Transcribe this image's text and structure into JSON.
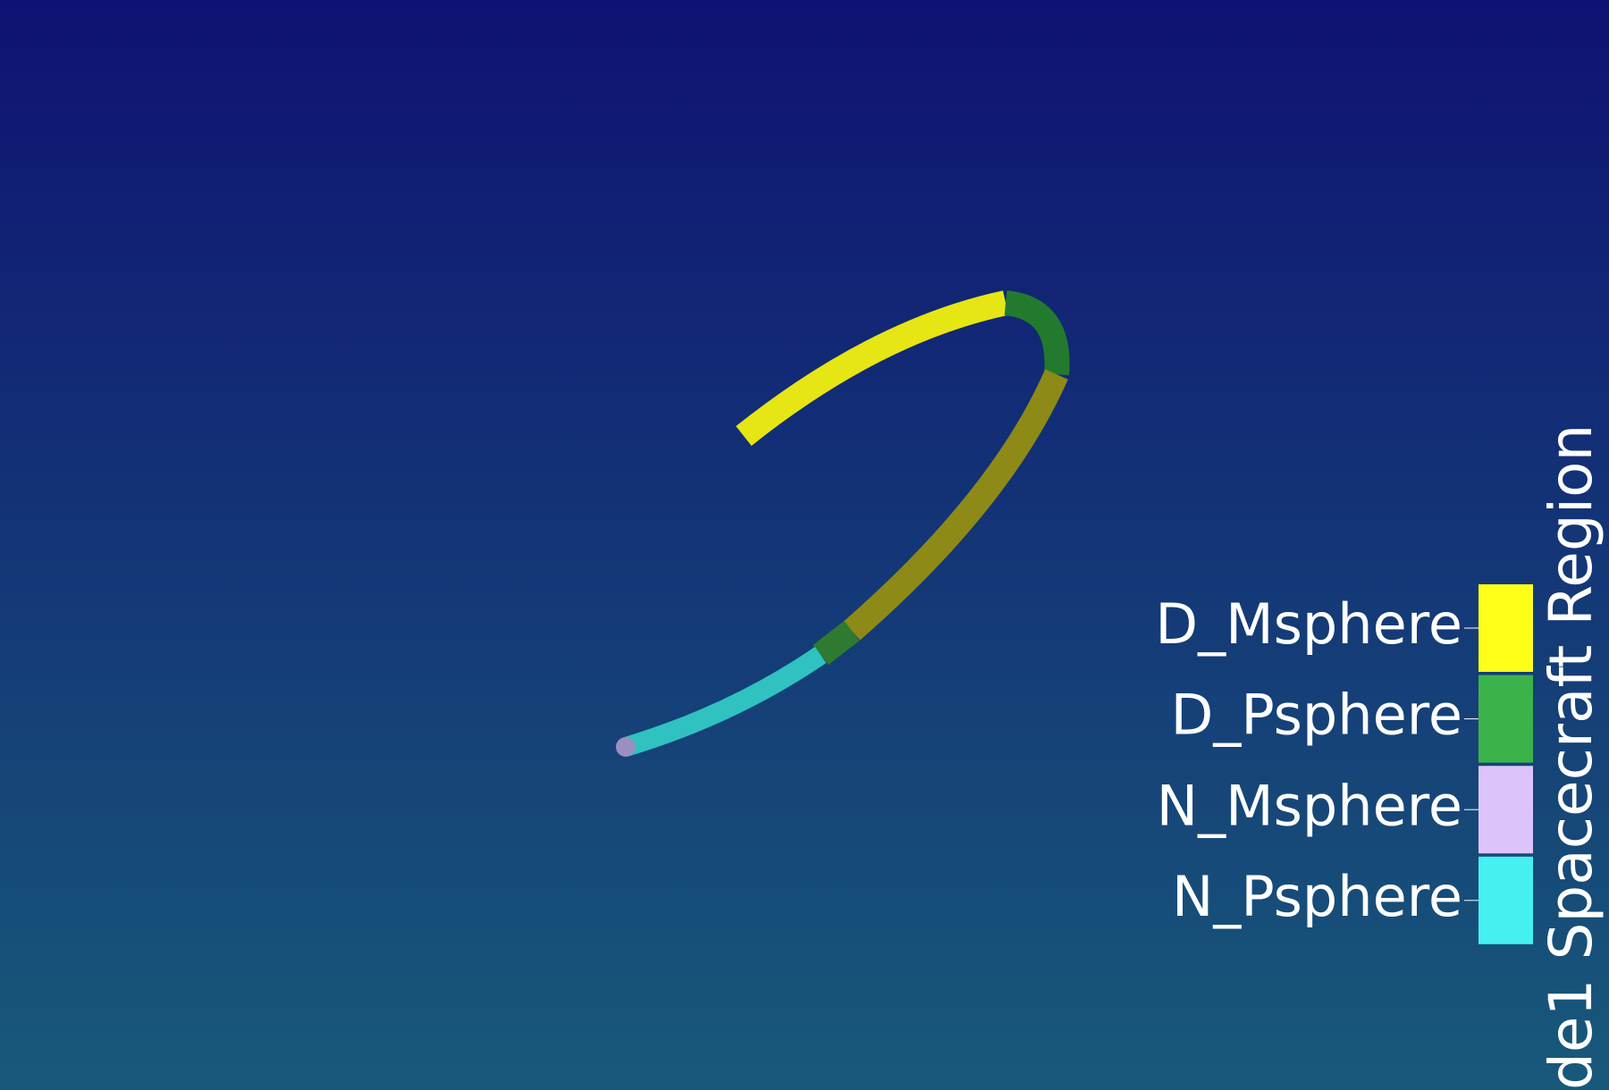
{
  "legend": {
    "title": "de1 Spacecraft Region",
    "items": [
      {
        "label": "D_Msphere",
        "color": "#ffff1a"
      },
      {
        "label": "D_Psphere",
        "color": "#3cb34a"
      },
      {
        "label": "N_Msphere",
        "color": "#dcc4fa"
      },
      {
        "label": "N_Psphere",
        "color": "#44f0f0"
      }
    ]
  }
}
